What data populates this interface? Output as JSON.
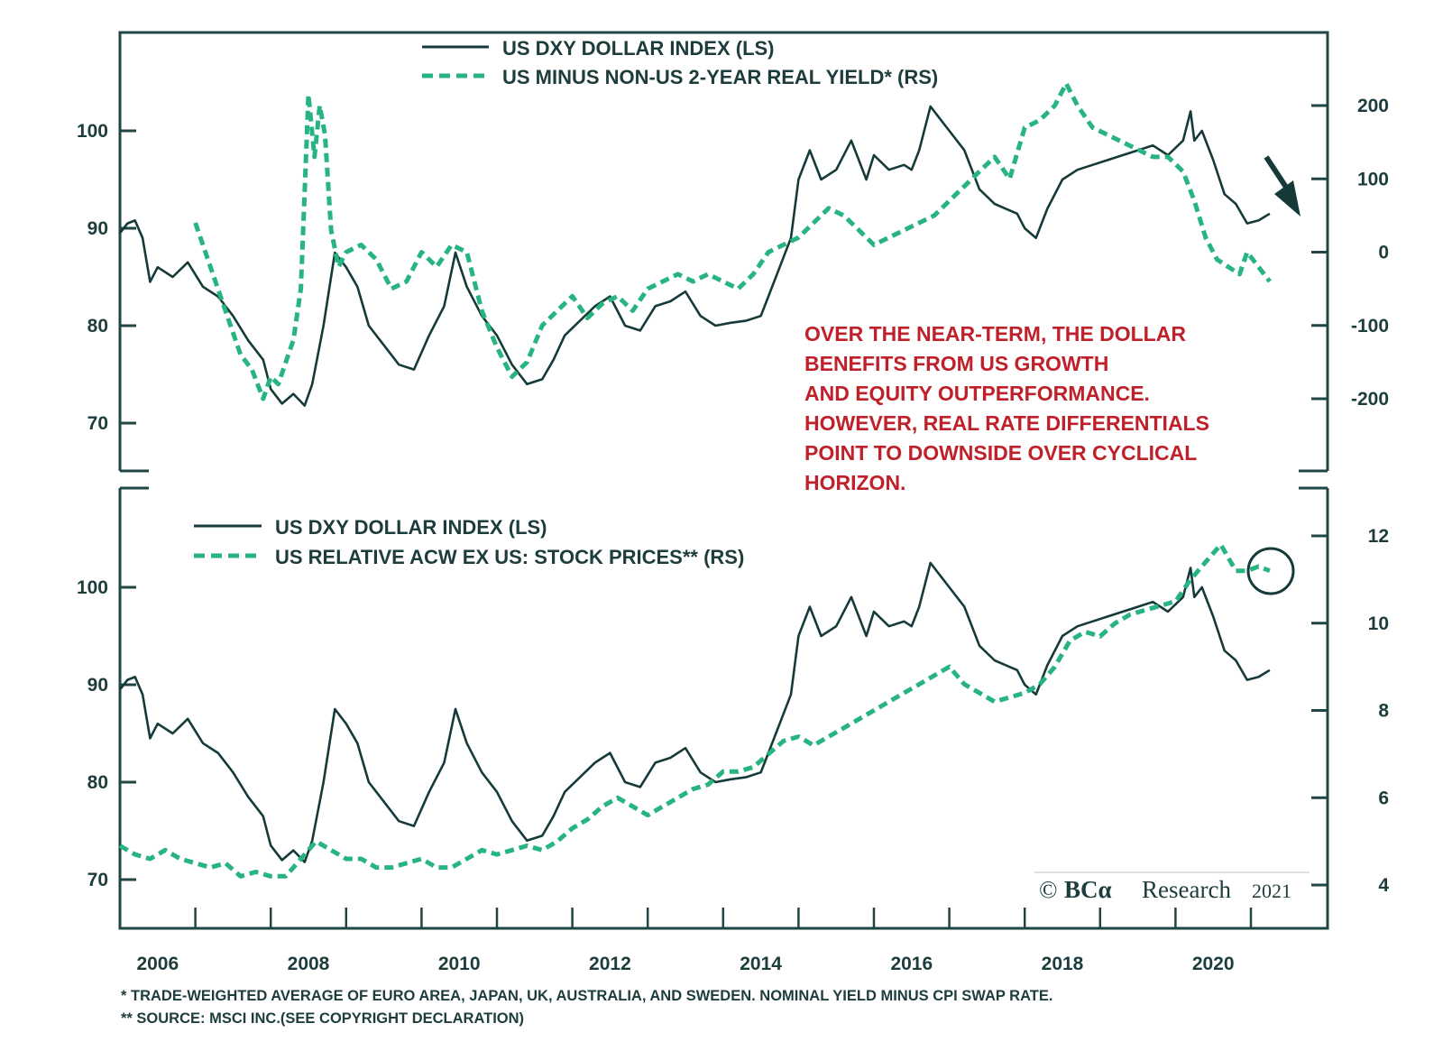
{
  "chart_data": [
    {
      "type": "line",
      "panel": "top",
      "legend": [
        {
          "name": "US DXY DOLLAR INDEX (LS)",
          "style": "solid",
          "color": "#163a3a"
        },
        {
          "name": "US MINUS NON-US 2-YEAR REAL YIELD* (RS)",
          "style": "dashed",
          "color": "#27b482"
        }
      ],
      "legend_placement": "top-center",
      "left_axis": {
        "ticks": [
          70,
          80,
          90,
          100
        ],
        "tick_labels": [
          "70",
          "80",
          "90",
          "100"
        ],
        "range": [
          65,
          108
        ]
      },
      "right_axis": {
        "ticks": [
          -200,
          -100,
          0,
          100,
          200
        ],
        "tick_labels": [
          "-200",
          "-100",
          "0",
          "100",
          "200"
        ],
        "range": [
          -240,
          300
        ]
      },
      "annotation": {
        "lines": [
          "OVER THE NEAR-TERM, THE DOLLAR",
          "BENEFITS FROM US GROWTH",
          "AND EQUITY OUTPERFORMANCE.",
          "HOWEVER, REAL RATE DIFFERENTIALS",
          "POINT TO DOWNSIDE OVER CYCLICAL",
          "HORIZON."
        ],
        "color": "#c0202a"
      },
      "arrow": {
        "direction": "down-right",
        "meaning": "dollar downside"
      },
      "series": [
        {
          "name": "US DXY DOLLAR INDEX (LS)",
          "axis": "left",
          "x": [
            2006.0,
            2006.1,
            2006.2,
            2006.3,
            2006.4,
            2006.5,
            2006.7,
            2006.9,
            2007.1,
            2007.3,
            2007.5,
            2007.7,
            2007.9,
            2008.0,
            2008.15,
            2008.3,
            2008.45,
            2008.55,
            2008.7,
            2008.85,
            2009.0,
            2009.15,
            2009.3,
            2009.5,
            2009.7,
            2009.9,
            2010.1,
            2010.3,
            2010.45,
            2010.6,
            2010.8,
            2011.0,
            2011.2,
            2011.4,
            2011.6,
            2011.75,
            2011.9,
            2012.1,
            2012.3,
            2012.5,
            2012.7,
            2012.9,
            2013.1,
            2013.3,
            2013.5,
            2013.7,
            2013.9,
            2014.1,
            2014.3,
            2014.5,
            2014.6,
            2014.75,
            2014.9,
            2015.0,
            2015.15,
            2015.3,
            2015.5,
            2015.7,
            2015.9,
            2016.0,
            2016.2,
            2016.4,
            2016.5,
            2016.6,
            2016.75,
            2016.9,
            2017.0,
            2017.2,
            2017.4,
            2017.6,
            2017.75,
            2017.9,
            2018.0,
            2018.15,
            2018.3,
            2018.5,
            2018.7,
            2018.9,
            2019.1,
            2019.3,
            2019.5,
            2019.7,
            2019.9,
            2020.1,
            2020.2,
            2020.25,
            2020.35,
            2020.5,
            2020.65,
            2020.8,
            2020.95,
            2021.1,
            2021.25
          ],
          "y": [
            89.5,
            90.5,
            90.8,
            89.0,
            84.5,
            86.0,
            85.0,
            86.5,
            84.0,
            83.0,
            81.0,
            78.5,
            76.5,
            73.5,
            72.0,
            73.0,
            71.8,
            74.0,
            80.0,
            87.5,
            86.0,
            84.0,
            80.0,
            78.0,
            76.0,
            75.5,
            79.0,
            82.0,
            87.5,
            84.0,
            81.0,
            79.0,
            76.0,
            74.0,
            74.5,
            76.5,
            79.0,
            80.5,
            82.0,
            83.0,
            80.0,
            79.5,
            82.0,
            82.5,
            83.5,
            81.0,
            80.0,
            80.3,
            80.5,
            81.0,
            83.0,
            86.0,
            89.0,
            95.0,
            98.0,
            95.0,
            96.0,
            99.0,
            95.0,
            97.5,
            96.0,
            96.5,
            96.0,
            98.0,
            102.5,
            101.0,
            100.0,
            98.0,
            94.0,
            92.5,
            92.0,
            91.5,
            90.0,
            89.0,
            92.0,
            95.0,
            96.0,
            96.5,
            97.0,
            97.5,
            98.0,
            98.5,
            97.5,
            99.0,
            102.0,
            99.0,
            100.0,
            97.0,
            93.5,
            92.5,
            90.5,
            90.8,
            91.5
          ]
        },
        {
          "name": "US MINUS NON-US 2-YEAR REAL YIELD* (RS)",
          "axis": "right",
          "x": [
            2007.0,
            2007.2,
            2007.4,
            2007.6,
            2007.75,
            2007.9,
            2008.0,
            2008.1,
            2008.2,
            2008.3,
            2008.4,
            2008.5,
            2008.58,
            2008.65,
            2008.72,
            2008.8,
            2008.9,
            2009.0,
            2009.2,
            2009.4,
            2009.6,
            2009.8,
            2010.0,
            2010.2,
            2010.4,
            2010.6,
            2010.8,
            2011.0,
            2011.2,
            2011.4,
            2011.6,
            2011.8,
            2012.0,
            2012.2,
            2012.4,
            2012.6,
            2012.8,
            2013.0,
            2013.2,
            2013.4,
            2013.6,
            2013.8,
            2014.0,
            2014.2,
            2014.4,
            2014.6,
            2014.8,
            2015.0,
            2015.2,
            2015.4,
            2015.6,
            2015.8,
            2016.0,
            2016.2,
            2016.4,
            2016.6,
            2016.8,
            2017.0,
            2017.2,
            2017.4,
            2017.6,
            2017.8,
            2018.0,
            2018.2,
            2018.4,
            2018.55,
            2018.7,
            2018.9,
            2019.1,
            2019.3,
            2019.5,
            2019.7,
            2019.9,
            2020.1,
            2020.25,
            2020.4,
            2020.55,
            2020.7,
            2020.85,
            2020.95,
            2021.1,
            2021.25
          ],
          "y": [
            40,
            -20,
            -80,
            -140,
            -160,
            -200,
            -170,
            -180,
            -150,
            -120,
            -50,
            215,
            130,
            200,
            160,
            30,
            -20,
            0,
            10,
            -10,
            -50,
            -40,
            0,
            -20,
            10,
            0,
            -80,
            -130,
            -170,
            -150,
            -100,
            -80,
            -60,
            -90,
            -70,
            -60,
            -80,
            -50,
            -40,
            -30,
            -40,
            -30,
            -40,
            -50,
            -30,
            0,
            10,
            20,
            40,
            60,
            50,
            30,
            10,
            20,
            30,
            40,
            50,
            70,
            90,
            110,
            130,
            100,
            170,
            180,
            200,
            230,
            200,
            170,
            160,
            150,
            140,
            130,
            130,
            110,
            70,
            20,
            -10,
            -20,
            -30,
            0,
            -20,
            -40
          ]
        }
      ]
    },
    {
      "type": "line",
      "panel": "bottom",
      "legend": [
        {
          "name": "US DXY DOLLAR INDEX (LS)",
          "style": "solid",
          "color": "#163a3a"
        },
        {
          "name": "US RELATIVE ACW EX US: STOCK PRICES** (RS)",
          "style": "dashed",
          "color": "#27b482"
        }
      ],
      "legend_placement": "top-left",
      "left_axis": {
        "ticks": [
          70,
          80,
          90,
          100
        ],
        "tick_labels": [
          "70",
          "80",
          "90",
          "100"
        ],
        "range": [
          65,
          108
        ]
      },
      "right_axis": {
        "ticks": [
          4,
          6,
          8,
          10,
          12
        ],
        "tick_labels": [
          "4",
          "6",
          "8",
          "10",
          "12"
        ],
        "range": [
          3,
          13
        ]
      },
      "annotation_circle": {
        "x": 2021.0,
        "y_right": 11.3,
        "meaning": "recent relative stock prices"
      },
      "series": [
        {
          "name": "US DXY DOLLAR INDEX (LS)",
          "axis": "left",
          "same_as": "top panel DXY"
        },
        {
          "name": "US RELATIVE ACW EX US: STOCK PRICES** (RS)",
          "axis": "right",
          "x": [
            2006.0,
            2006.2,
            2006.4,
            2006.6,
            2006.8,
            2007.0,
            2007.2,
            2007.4,
            2007.6,
            2007.8,
            2008.0,
            2008.2,
            2008.4,
            2008.6,
            2008.8,
            2009.0,
            2009.2,
            2009.4,
            2009.6,
            2009.8,
            2010.0,
            2010.2,
            2010.4,
            2010.6,
            2010.8,
            2011.0,
            2011.2,
            2011.4,
            2011.6,
            2011.8,
            2012.0,
            2012.2,
            2012.4,
            2012.6,
            2012.8,
            2013.0,
            2013.2,
            2013.4,
            2013.6,
            2013.8,
            2014.0,
            2014.2,
            2014.4,
            2014.6,
            2014.8,
            2015.0,
            2015.2,
            2015.4,
            2015.6,
            2015.8,
            2016.0,
            2016.2,
            2016.4,
            2016.6,
            2016.8,
            2017.0,
            2017.2,
            2017.4,
            2017.6,
            2017.8,
            2018.0,
            2018.2,
            2018.4,
            2018.6,
            2018.8,
            2019.0,
            2019.2,
            2019.4,
            2019.6,
            2019.8,
            2020.0,
            2020.2,
            2020.4,
            2020.6,
            2020.8,
            2020.95,
            2021.1,
            2021.25
          ],
          "y": [
            4.9,
            4.7,
            4.6,
            4.8,
            4.6,
            4.5,
            4.4,
            4.5,
            4.2,
            4.3,
            4.2,
            4.2,
            4.6,
            5.0,
            4.8,
            4.6,
            4.6,
            4.4,
            4.4,
            4.5,
            4.6,
            4.4,
            4.4,
            4.6,
            4.8,
            4.7,
            4.8,
            4.9,
            4.8,
            5.0,
            5.3,
            5.5,
            5.8,
            6.0,
            5.8,
            5.6,
            5.8,
            6.0,
            6.2,
            6.3,
            6.6,
            6.6,
            6.7,
            7.0,
            7.3,
            7.4,
            7.2,
            7.4,
            7.6,
            7.8,
            8.0,
            8.2,
            8.4,
            8.6,
            8.8,
            9.0,
            8.6,
            8.4,
            8.2,
            8.3,
            8.4,
            8.6,
            9.0,
            9.6,
            9.8,
            9.7,
            10.0,
            10.2,
            10.3,
            10.4,
            10.5,
            11.0,
            11.4,
            11.8,
            11.2,
            11.2,
            11.3,
            11.2
          ]
        }
      ]
    }
  ],
  "x_axis": {
    "tick_labels": [
      "2006",
      "2008",
      "2010",
      "2012",
      "2014",
      "2016",
      "2018",
      "2020"
    ],
    "range": [
      2006,
      2022
    ]
  },
  "credit": {
    "symbol": "©",
    "brand": "BCα",
    "word": "Research",
    "year": "2021"
  },
  "footnotes": [
    "*  TRADE-WEIGHTED AVERAGE OF EURO AREA, JAPAN, UK, AUSTRALIA, AND SWEDEN. NOMINAL YIELD MINUS CPI SWAP RATE.",
    "** SOURCE: MSCI INC.(SEE COPYRIGHT DECLARATION)"
  ],
  "colors": {
    "frame": "#1f4545",
    "dxy": "#163a3a",
    "green": "#27b482",
    "note": "#c0202a"
  }
}
